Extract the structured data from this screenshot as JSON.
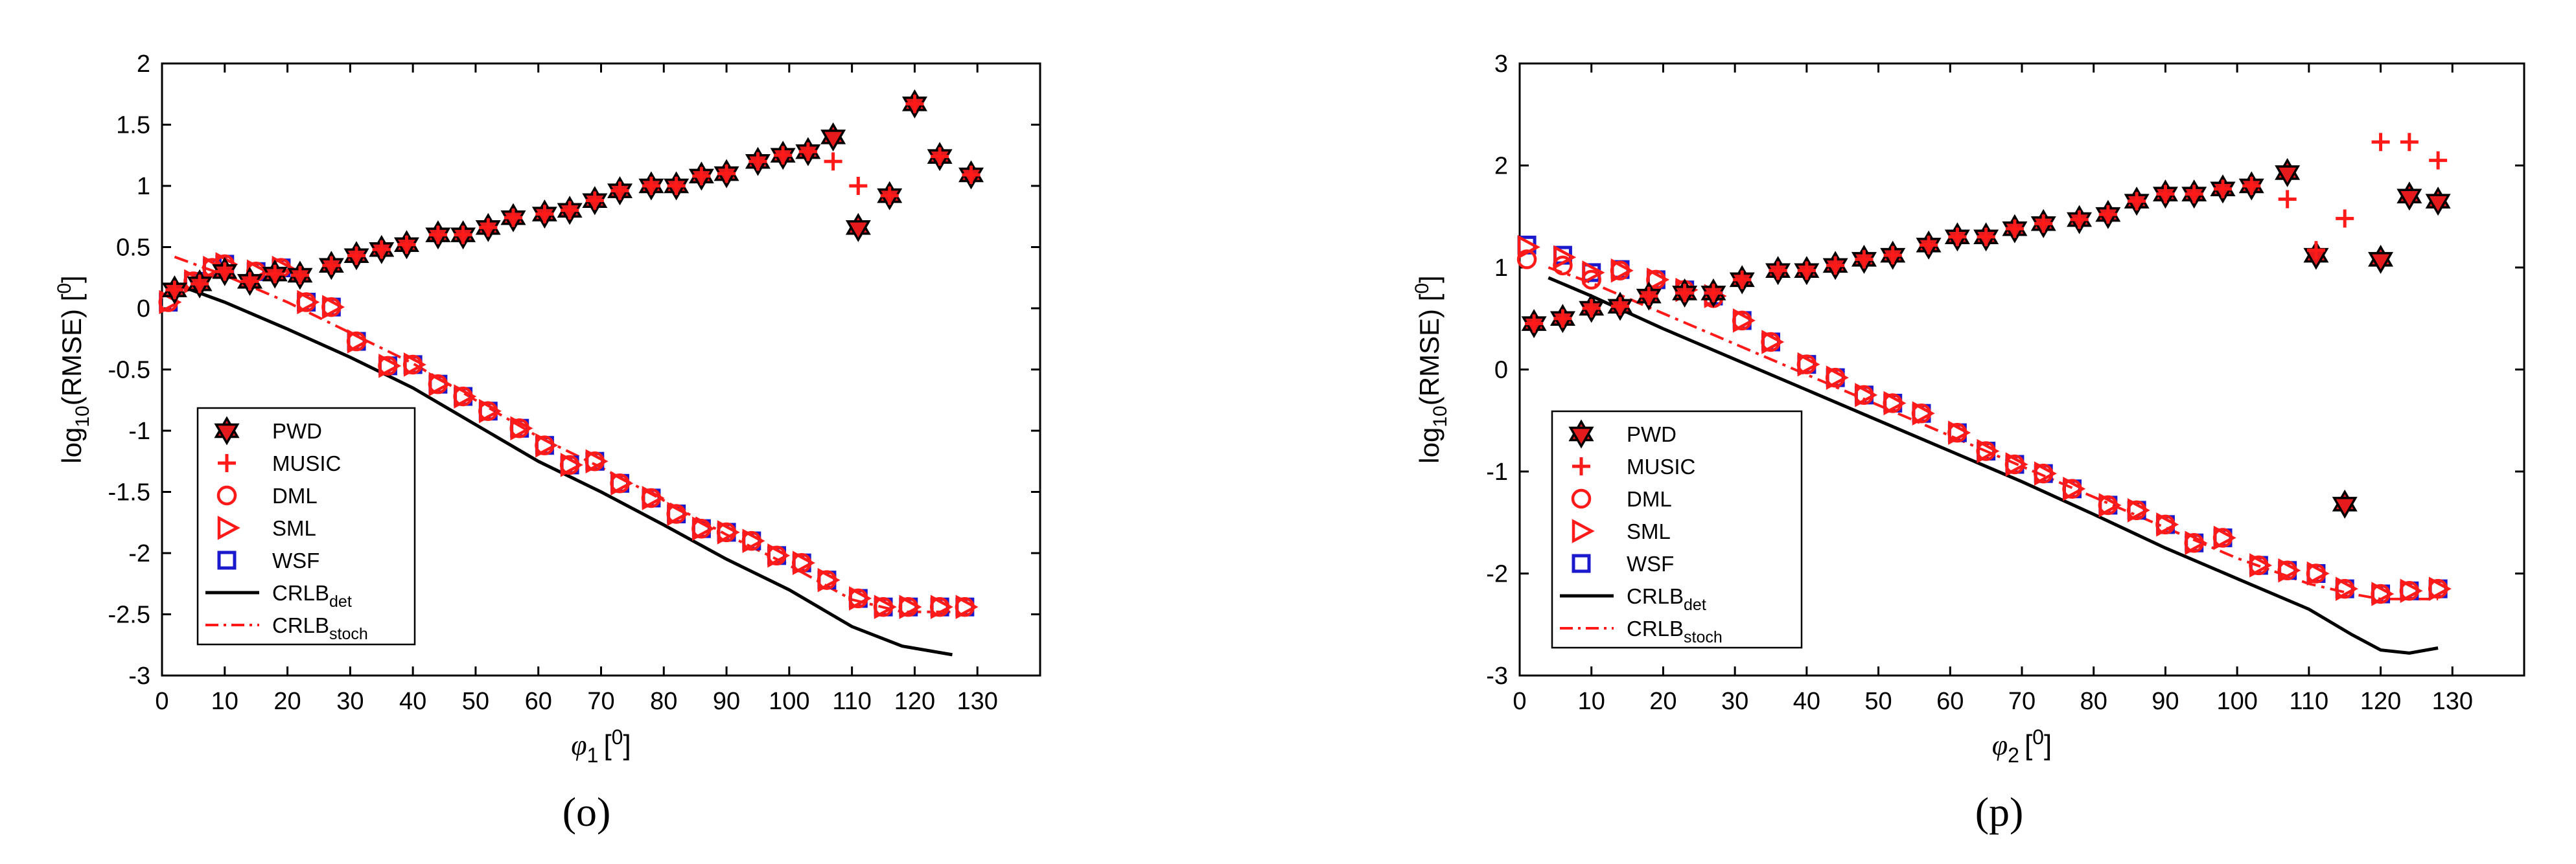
{
  "colors": {
    "pwd": "#000000",
    "music": "#ff1a1a",
    "dml": "#ff1a1a",
    "sml": "#ff1a1a",
    "wsf": "#1a1acc",
    "crlb_det": "#000000",
    "crlb_stoch": "#ff1a1a"
  },
  "chart_data": [
    {
      "type": "scatter",
      "panel_label": "(o)",
      "xlabel_base": "φ",
      "xlabel_sub": "1",
      "xlabel_suffix": "[",
      "xlabel_sup": "0",
      "xlabel_close": "]",
      "ylabel_base": "log",
      "ylabel_sub": "10",
      "ylabel_mid": "(RMSE) [",
      "ylabel_sup": "0",
      "ylabel_close": "]",
      "xlim": [
        0,
        140
      ],
      "ylim": [
        -3,
        2
      ],
      "xticks": [
        "0",
        "10",
        "20",
        "30",
        "40",
        "50",
        "60",
        "70",
        "80",
        "90",
        "100",
        "110",
        "120",
        "130"
      ],
      "yticks": [
        "-3",
        "-2.5",
        "-2",
        "-1.5",
        "-1",
        "-0.5",
        "0",
        "0.5",
        "1",
        "1.5",
        "2"
      ],
      "legend_position": "bottom-left",
      "legend": [
        {
          "label": "PWD",
          "sub": ""
        },
        {
          "label": "MUSIC",
          "sub": ""
        },
        {
          "label": "DML",
          "sub": ""
        },
        {
          "label": "SML",
          "sub": ""
        },
        {
          "label": "WSF",
          "sub": ""
        },
        {
          "label": "CRLB",
          "sub": "det"
        },
        {
          "label": "CRLB",
          "sub": "stoch"
        }
      ],
      "series": [
        {
          "name": "PWD",
          "marker": "hexagram",
          "x": [
            2,
            6,
            10,
            14,
            18,
            22,
            27,
            31,
            35,
            39,
            44,
            48,
            52,
            56,
            61,
            65,
            69,
            73,
            78,
            82,
            86,
            90,
            95,
            99,
            103,
            107,
            111,
            116,
            120,
            124,
            129
          ],
          "y": [
            0.15,
            0.2,
            0.3,
            0.22,
            0.28,
            0.27,
            0.35,
            0.43,
            0.48,
            0.52,
            0.6,
            0.6,
            0.66,
            0.74,
            0.77,
            0.8,
            0.88,
            0.96,
            1.0,
            1.0,
            1.08,
            1.1,
            1.2,
            1.25,
            1.28,
            1.4,
            0.66,
            0.92,
            1.67,
            1.24,
            1.09
          ]
        },
        {
          "name": "MUSIC",
          "marker": "plus",
          "x": [
            2,
            6,
            10,
            14,
            18,
            22,
            27,
            31,
            35,
            39,
            44,
            48,
            52,
            56,
            61,
            65,
            69,
            73,
            78,
            82,
            86,
            90,
            95,
            99,
            103,
            107,
            111,
            116,
            120,
            124,
            129
          ],
          "y": [
            0.15,
            0.2,
            0.3,
            0.22,
            0.28,
            0.27,
            0.35,
            0.43,
            0.48,
            0.52,
            0.6,
            0.6,
            0.66,
            0.74,
            0.77,
            0.8,
            0.88,
            0.96,
            1.0,
            1.0,
            1.08,
            1.1,
            1.2,
            1.25,
            1.28,
            1.2,
            1.0,
            0.92,
            1.67,
            1.24,
            1.09
          ]
        },
        {
          "name": "DML",
          "marker": "circle",
          "x": [
            1,
            5,
            8,
            10,
            15,
            19,
            23,
            27,
            31,
            36,
            40,
            44,
            48,
            52,
            57,
            61,
            65,
            69,
            73,
            78,
            82,
            86,
            90,
            94,
            98,
            102,
            106,
            111,
            115,
            119,
            124,
            128
          ],
          "y": [
            0.05,
            0.22,
            0.33,
            0.36,
            0.3,
            0.33,
            0.05,
            0.01,
            -0.27,
            -0.47,
            -0.46,
            -0.62,
            -0.72,
            -0.84,
            -0.98,
            -1.12,
            -1.28,
            -1.25,
            -1.43,
            -1.55,
            -1.68,
            -1.8,
            -1.83,
            -1.9,
            -2.02,
            -2.08,
            -2.22,
            -2.37,
            -2.44,
            -2.44,
            -2.44,
            -2.44
          ]
        },
        {
          "name": "SML",
          "marker": "triangle",
          "x": [
            1,
            5,
            8,
            10,
            15,
            19,
            23,
            27,
            31,
            36,
            40,
            44,
            48,
            52,
            57,
            61,
            65,
            69,
            73,
            78,
            82,
            86,
            90,
            94,
            98,
            102,
            106,
            111,
            115,
            119,
            124,
            128
          ],
          "y": [
            0.05,
            0.22,
            0.33,
            0.36,
            0.3,
            0.33,
            0.05,
            0.01,
            -0.27,
            -0.47,
            -0.46,
            -0.62,
            -0.72,
            -0.84,
            -0.98,
            -1.12,
            -1.28,
            -1.25,
            -1.43,
            -1.55,
            -1.68,
            -1.8,
            -1.83,
            -1.9,
            -2.02,
            -2.08,
            -2.22,
            -2.37,
            -2.44,
            -2.44,
            -2.44,
            -2.44
          ]
        },
        {
          "name": "WSF",
          "marker": "square",
          "x": [
            1,
            5,
            8,
            10,
            15,
            19,
            23,
            27,
            31,
            36,
            40,
            44,
            48,
            52,
            57,
            61,
            65,
            69,
            73,
            78,
            82,
            86,
            90,
            94,
            98,
            102,
            106,
            111,
            115,
            119,
            124,
            128
          ],
          "y": [
            0.05,
            0.22,
            0.33,
            0.36,
            0.3,
            0.33,
            0.05,
            0.01,
            -0.27,
            -0.47,
            -0.46,
            -0.62,
            -0.72,
            -0.84,
            -0.98,
            -1.12,
            -1.28,
            -1.25,
            -1.43,
            -1.55,
            -1.68,
            -1.8,
            -1.83,
            -1.9,
            -2.02,
            -2.08,
            -2.22,
            -2.37,
            -2.44,
            -2.44,
            -2.44,
            -2.44
          ]
        },
        {
          "name": "CRLB_det",
          "marker": "line-solid",
          "x": [
            2,
            10,
            20,
            30,
            40,
            50,
            60,
            70,
            80,
            90,
            100,
            110,
            118,
            126
          ],
          "y": [
            0.2,
            0.05,
            -0.17,
            -0.4,
            -0.65,
            -0.95,
            -1.25,
            -1.5,
            -1.77,
            -2.05,
            -2.3,
            -2.6,
            -2.76,
            -2.83
          ]
        },
        {
          "name": "CRLB_stoch",
          "marker": "line-dashdot",
          "x": [
            2,
            10,
            20,
            30,
            40,
            50,
            60,
            70,
            80,
            90,
            100,
            110,
            118,
            126
          ],
          "y": [
            0.42,
            0.27,
            0.05,
            -0.2,
            -0.45,
            -0.75,
            -1.05,
            -1.3,
            -1.57,
            -1.85,
            -2.1,
            -2.38,
            -2.48,
            -2.48
          ]
        }
      ]
    },
    {
      "type": "scatter",
      "panel_label": "(p)",
      "xlabel_base": "φ",
      "xlabel_sub": "2",
      "xlabel_suffix": "[",
      "xlabel_sup": "0",
      "xlabel_close": "]",
      "ylabel_base": "log",
      "ylabel_sub": "10",
      "ylabel_mid": "(RMSE) [",
      "ylabel_sup": "0",
      "ylabel_close": "]",
      "xlim": [
        0,
        140
      ],
      "ylim": [
        -3,
        3
      ],
      "xticks": [
        "0",
        "10",
        "20",
        "30",
        "40",
        "50",
        "60",
        "70",
        "80",
        "90",
        "100",
        "110",
        "120",
        "130"
      ],
      "yticks": [
        "-3",
        "-2",
        "-1",
        "0",
        "1",
        "2",
        "3"
      ],
      "legend_position": "bottom-left",
      "legend": [
        {
          "label": "PWD",
          "sub": ""
        },
        {
          "label": "MUSIC",
          "sub": ""
        },
        {
          "label": "DML",
          "sub": ""
        },
        {
          "label": "SML",
          "sub": ""
        },
        {
          "label": "WSF",
          "sub": ""
        },
        {
          "label": "CRLB",
          "sub": "det"
        },
        {
          "label": "CRLB",
          "sub": "stoch"
        }
      ],
      "series": [
        {
          "name": "PWD",
          "marker": "hexagram",
          "x": [
            2,
            6,
            10,
            14,
            18,
            23,
            27,
            31,
            36,
            40,
            44,
            48,
            52,
            57,
            61,
            65,
            69,
            73,
            78,
            82,
            86,
            90,
            94,
            98,
            102,
            107,
            111,
            115,
            120,
            124,
            128
          ],
          "y": [
            0.45,
            0.5,
            0.6,
            0.62,
            0.72,
            0.75,
            0.75,
            0.88,
            0.97,
            0.97,
            1.02,
            1.08,
            1.12,
            1.22,
            1.3,
            1.3,
            1.38,
            1.43,
            1.47,
            1.52,
            1.65,
            1.72,
            1.72,
            1.77,
            1.8,
            1.93,
            1.12,
            -1.32,
            1.08,
            1.7,
            1.65
          ]
        },
        {
          "name": "MUSIC",
          "marker": "plus",
          "x": [
            2,
            6,
            10,
            14,
            18,
            23,
            27,
            31,
            36,
            40,
            44,
            48,
            52,
            57,
            61,
            65,
            69,
            73,
            78,
            82,
            86,
            90,
            94,
            98,
            102,
            107,
            111,
            115,
            120,
            124,
            128
          ],
          "y": [
            0.45,
            0.5,
            0.6,
            0.62,
            0.72,
            0.75,
            0.75,
            0.88,
            0.97,
            0.97,
            1.02,
            1.08,
            1.12,
            1.22,
            1.3,
            1.3,
            1.38,
            1.43,
            1.47,
            1.52,
            1.65,
            1.72,
            1.72,
            1.77,
            1.8,
            1.67,
            1.17,
            1.48,
            2.23,
            2.23,
            2.05
          ]
        },
        {
          "name": "DML",
          "marker": "circle",
          "x": [
            1,
            6,
            10,
            14,
            19,
            23,
            27,
            31,
            35,
            40,
            44,
            48,
            52,
            56,
            61,
            65,
            69,
            73,
            77,
            82,
            86,
            90,
            94,
            98,
            103,
            107,
            111,
            115,
            120,
            124,
            128
          ],
          "y": [
            1.08,
            1.02,
            0.88,
            0.97,
            0.88,
            0.78,
            0.7,
            0.48,
            0.27,
            0.05,
            -0.08,
            -0.25,
            -0.33,
            -0.43,
            -0.62,
            -0.8,
            -0.93,
            -1.02,
            -1.17,
            -1.33,
            -1.38,
            -1.52,
            -1.7,
            -1.65,
            -1.92,
            -1.97,
            -2.0,
            -2.15,
            -2.2,
            -2.17,
            -2.15
          ]
        },
        {
          "name": "SML",
          "marker": "triangle",
          "x": [
            1,
            6,
            10,
            14,
            19,
            23,
            27,
            31,
            35,
            40,
            44,
            48,
            52,
            56,
            61,
            65,
            69,
            73,
            77,
            82,
            86,
            90,
            94,
            98,
            103,
            107,
            111,
            115,
            120,
            124,
            128
          ],
          "y": [
            1.2,
            1.1,
            0.95,
            0.97,
            0.88,
            0.78,
            0.72,
            0.48,
            0.27,
            0.05,
            -0.08,
            -0.25,
            -0.33,
            -0.43,
            -0.62,
            -0.8,
            -0.93,
            -1.02,
            -1.17,
            -1.33,
            -1.38,
            -1.52,
            -1.7,
            -1.65,
            -1.92,
            -1.97,
            -2.0,
            -2.15,
            -2.2,
            -2.17,
            -2.15
          ]
        },
        {
          "name": "WSF",
          "marker": "square",
          "x": [
            1,
            6,
            10,
            14,
            19,
            23,
            27,
            31,
            35,
            40,
            44,
            48,
            52,
            56,
            61,
            65,
            69,
            73,
            77,
            82,
            86,
            90,
            94,
            98,
            103,
            107,
            111,
            115,
            120,
            124,
            128
          ],
          "y": [
            1.22,
            1.12,
            0.95,
            0.98,
            0.88,
            0.78,
            0.72,
            0.48,
            0.27,
            0.05,
            -0.08,
            -0.25,
            -0.33,
            -0.43,
            -0.62,
            -0.8,
            -0.93,
            -1.02,
            -1.17,
            -1.33,
            -1.38,
            -1.52,
            -1.7,
            -1.65,
            -1.92,
            -1.97,
            -2.0,
            -2.15,
            -2.2,
            -2.17,
            -2.15
          ]
        },
        {
          "name": "CRLB_det",
          "marker": "line-solid",
          "x": [
            4,
            10,
            20,
            30,
            40,
            50,
            60,
            70,
            80,
            90,
            100,
            110,
            116,
            120,
            124,
            128
          ],
          "y": [
            0.9,
            0.72,
            0.4,
            0.1,
            -0.2,
            -0.5,
            -0.8,
            -1.1,
            -1.42,
            -1.75,
            -2.05,
            -2.35,
            -2.6,
            -2.75,
            -2.78,
            -2.73
          ]
        },
        {
          "name": "CRLB_stoch",
          "marker": "line-dashdot",
          "x": [
            4,
            10,
            20,
            30,
            40,
            50,
            60,
            70,
            80,
            90,
            100,
            110,
            116,
            120,
            124,
            128
          ],
          "y": [
            1.0,
            0.85,
            0.55,
            0.25,
            -0.05,
            -0.35,
            -0.65,
            -0.95,
            -1.25,
            -1.55,
            -1.85,
            -2.1,
            -2.2,
            -2.25,
            -2.25,
            -2.25
          ]
        }
      ]
    }
  ]
}
